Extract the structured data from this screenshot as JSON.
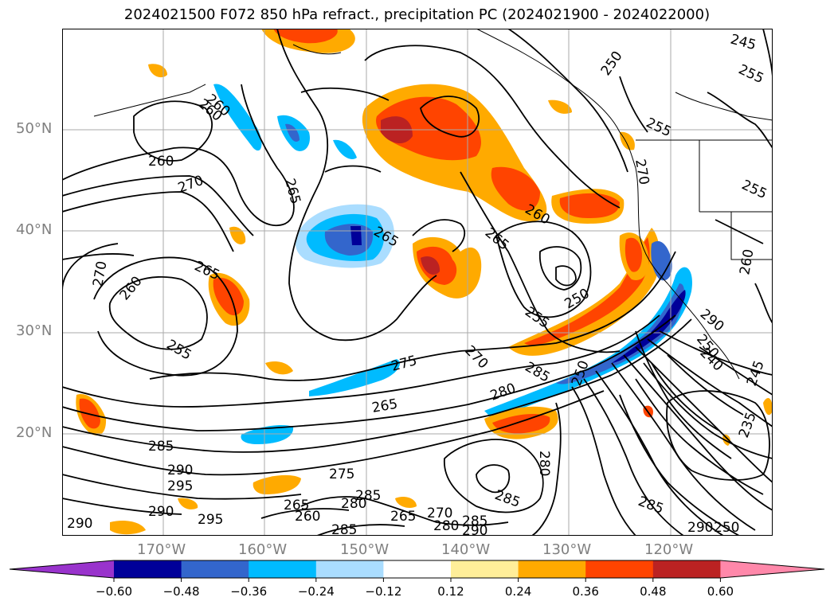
{
  "title": "2024021500 F072 850 hPa refract., precipitation PC (2024021900 - 2024022000)",
  "map": {
    "lat_labels": [
      "50°N",
      "40°N",
      "30°N",
      "20°N"
    ],
    "lon_labels": [
      "170°W",
      "160°W",
      "150°W",
      "140°W",
      "130°W",
      "120°W"
    ],
    "axis_label_color": "#808080",
    "contour_labels": [
      {
        "text": "260"
      },
      {
        "text": "260"
      },
      {
        "text": "270"
      },
      {
        "text": "265"
      },
      {
        "text": "265"
      },
      {
        "text": "270"
      },
      {
        "text": "260"
      },
      {
        "text": "265"
      },
      {
        "text": "255"
      },
      {
        "text": "265"
      },
      {
        "text": "260"
      },
      {
        "text": "255"
      },
      {
        "text": "250"
      },
      {
        "text": "275"
      },
      {
        "text": "270"
      },
      {
        "text": "265"
      },
      {
        "text": "285"
      },
      {
        "text": "280"
      },
      {
        "text": "285"
      },
      {
        "text": "290"
      },
      {
        "text": "295"
      },
      {
        "text": "290"
      },
      {
        "text": "265"
      },
      {
        "text": "260"
      },
      {
        "text": "275"
      },
      {
        "text": "285"
      },
      {
        "text": "280"
      },
      {
        "text": "295"
      },
      {
        "text": "290"
      },
      {
        "text": "285"
      },
      {
        "text": "265"
      },
      {
        "text": "270"
      },
      {
        "text": "280"
      },
      {
        "text": "290"
      },
      {
        "text": "285"
      },
      {
        "text": "285"
      },
      {
        "text": "280"
      },
      {
        "text": "250"
      },
      {
        "text": "240"
      },
      {
        "text": "250"
      },
      {
        "text": "235"
      },
      {
        "text": "285"
      },
      {
        "text": "290"
      },
      {
        "text": "250"
      },
      {
        "text": "245"
      },
      {
        "text": "255"
      },
      {
        "text": "250"
      },
      {
        "text": "255"
      },
      {
        "text": "270"
      },
      {
        "text": "255"
      },
      {
        "text": "260"
      },
      {
        "text": "245"
      },
      {
        "text": "260"
      },
      {
        "text": "290"
      }
    ]
  },
  "colorbar": {
    "ticks": [
      "−0.60",
      "−0.48",
      "−0.36",
      "−0.24",
      "−0.12",
      "0.12",
      "0.24",
      "0.36",
      "0.48",
      "0.60"
    ],
    "colors": [
      "#9933cc",
      "#000099",
      "#3366cc",
      "#00bbff",
      "#aaddff",
      "#ffffff",
      "#ffee99",
      "#ffaa00",
      "#ff4400",
      "#bb2222",
      "#ff88aa"
    ]
  }
}
